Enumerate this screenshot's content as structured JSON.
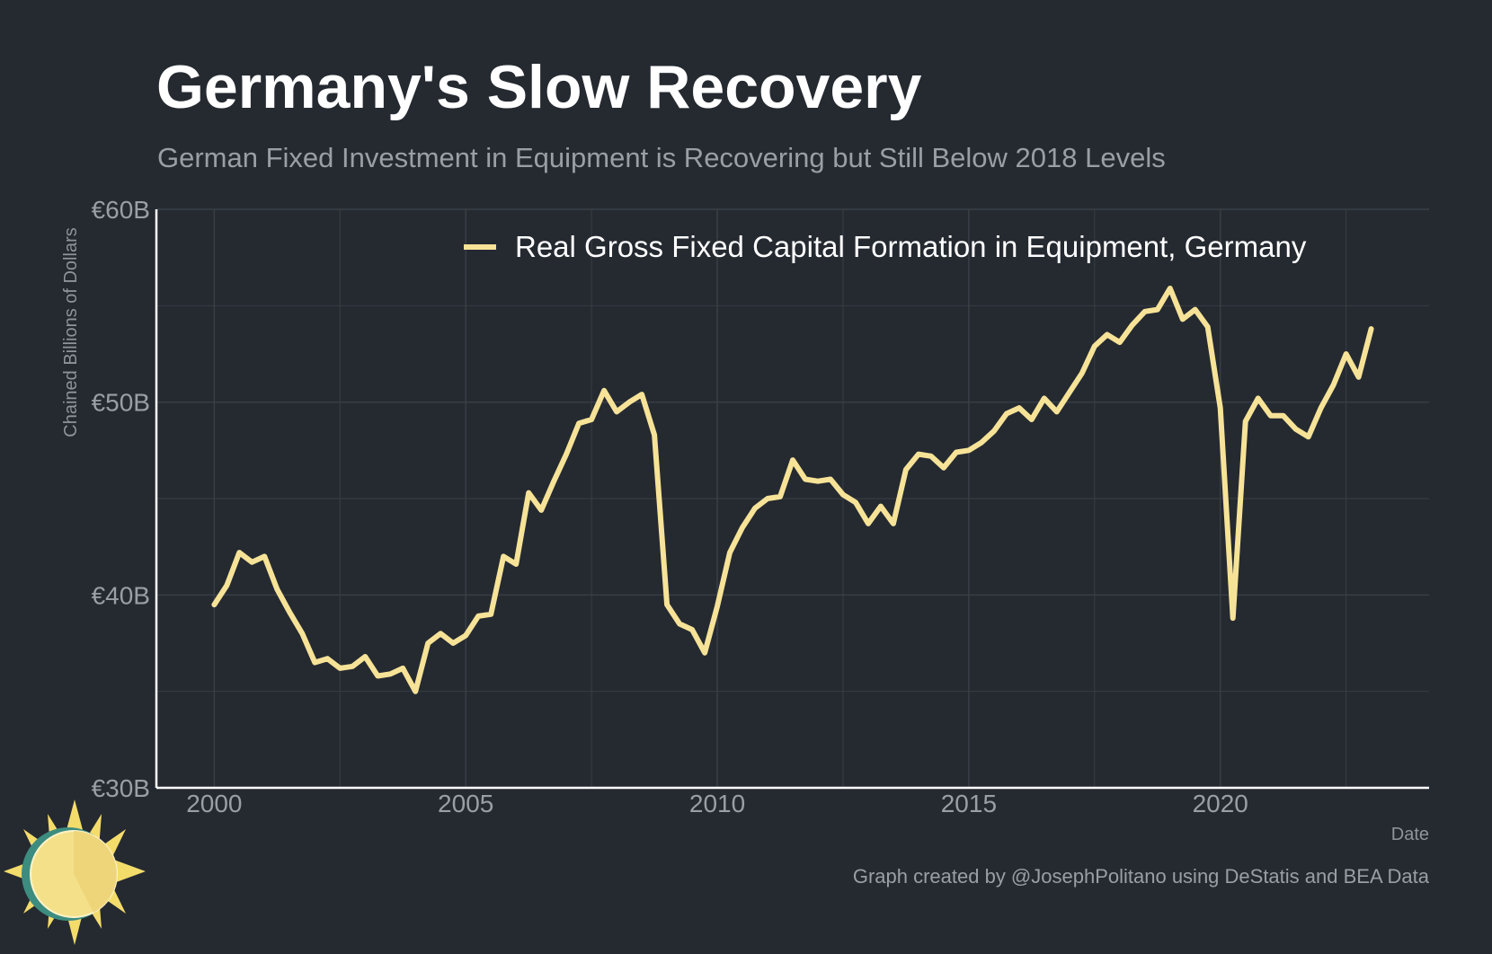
{
  "title": "Germany's Slow Recovery",
  "subtitle": "German Fixed Investment in Equipment is Recovering but Still Below 2018 Levels",
  "caption": "Graph created by @JosephPolitano using DeStatis and BEA Data",
  "logo_icon": "sun-icon",
  "colors": {
    "background": "#252a31",
    "line": "#f7e397",
    "grid": "#3a3f47",
    "axis": "#ffffff",
    "muted_text": "#9a9ea5"
  },
  "chart_data": {
    "type": "line",
    "xlabel": "Date",
    "ylabel": "Chained Billions of Dollars",
    "xlim": [
      1998.85,
      2024.15
    ],
    "ylim": [
      30,
      60
    ],
    "x_ticks": [
      2000,
      2005,
      2010,
      2015,
      2020
    ],
    "x_tick_labels": [
      "2000",
      "2005",
      "2010",
      "2015",
      "2020"
    ],
    "y_ticks": [
      30,
      40,
      50,
      60
    ],
    "y_tick_labels": [
      "€30B",
      "€40B",
      "€50B",
      "€60B"
    ],
    "grid": true,
    "legend_position": "top-right",
    "series": [
      {
        "name": "Real Gross Fixed Capital Formation in Equipment, Germany",
        "color": "#f7e397",
        "x": [
          2000.0,
          2000.25,
          2000.5,
          2000.75,
          2001.0,
          2001.25,
          2001.5,
          2001.75,
          2002.0,
          2002.25,
          2002.5,
          2002.75,
          2003.0,
          2003.25,
          2003.5,
          2003.75,
          2004.0,
          2004.25,
          2004.5,
          2004.75,
          2005.0,
          2005.25,
          2005.5,
          2005.75,
          2006.0,
          2006.25,
          2006.5,
          2006.75,
          2007.0,
          2007.25,
          2007.5,
          2007.75,
          2008.0,
          2008.25,
          2008.5,
          2008.75,
          2009.0,
          2009.25,
          2009.5,
          2009.75,
          2010.0,
          2010.25,
          2010.5,
          2010.75,
          2011.0,
          2011.25,
          2011.5,
          2011.75,
          2012.0,
          2012.25,
          2012.5,
          2012.75,
          2013.0,
          2013.25,
          2013.5,
          2013.75,
          2014.0,
          2014.25,
          2014.5,
          2014.75,
          2015.0,
          2015.25,
          2015.5,
          2015.75,
          2016.0,
          2016.25,
          2016.5,
          2016.75,
          2017.0,
          2017.25,
          2017.5,
          2017.75,
          2018.0,
          2018.25,
          2018.5,
          2018.75,
          2019.0,
          2019.25,
          2019.5,
          2019.75,
          2020.0,
          2020.25,
          2020.5,
          2020.75,
          2021.0,
          2021.25,
          2021.5,
          2021.75,
          2022.0,
          2022.25,
          2022.5,
          2022.75,
          2023.0
        ],
        "values": [
          39.5,
          40.5,
          42.2,
          41.7,
          42.0,
          40.3,
          39.1,
          38.0,
          36.5,
          36.7,
          36.2,
          36.3,
          36.8,
          35.8,
          35.9,
          36.2,
          35.0,
          37.5,
          38.0,
          37.5,
          37.9,
          38.9,
          39.0,
          42.0,
          41.6,
          45.3,
          44.4,
          45.9,
          47.3,
          48.9,
          49.1,
          50.6,
          49.5,
          50.0,
          50.4,
          48.3,
          39.5,
          38.5,
          38.2,
          37.0,
          39.4,
          42.2,
          43.5,
          44.5,
          45.0,
          45.1,
          47.0,
          46.0,
          45.9,
          46.0,
          45.2,
          44.8,
          43.7,
          44.6,
          43.7,
          46.5,
          47.3,
          47.2,
          46.6,
          47.4,
          47.5,
          47.9,
          48.5,
          49.4,
          49.7,
          49.1,
          50.2,
          49.5,
          50.5,
          51.5,
          52.9,
          53.5,
          53.1,
          54.0,
          54.7,
          54.8,
          55.9,
          54.3,
          54.8,
          53.9,
          49.7,
          38.8,
          49.0,
          50.2,
          49.3,
          49.3,
          48.6,
          48.2,
          49.7,
          50.9,
          52.5,
          51.3,
          53.8
        ]
      }
    ]
  }
}
